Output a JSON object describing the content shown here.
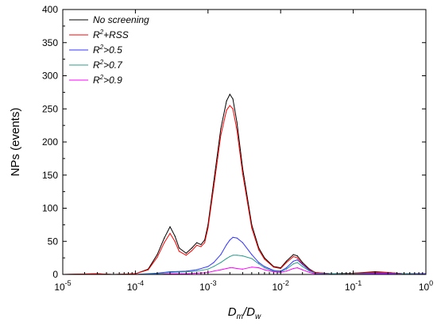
{
  "chart_data": {
    "type": "line",
    "xscale": "log",
    "xlim": [
      1e-05,
      1
    ],
    "ylim": [
      0,
      400
    ],
    "xticks": [
      {
        "value": 1e-05,
        "base": "10",
        "exp": "-5"
      },
      {
        "value": 0.0001,
        "base": "10",
        "exp": "-4"
      },
      {
        "value": 0.001,
        "base": "10",
        "exp": "-3"
      },
      {
        "value": 0.01,
        "base": "10",
        "exp": "-2"
      },
      {
        "value": 0.1,
        "base": "10",
        "exp": "-1"
      },
      {
        "value": 1,
        "base": "10",
        "exp": "0"
      }
    ],
    "yticks": [
      0,
      50,
      100,
      150,
      200,
      250,
      300,
      350,
      400
    ],
    "ylabel": "NPs (events)",
    "xlabel": {
      "num": "D",
      "num_sub": "m",
      "sep": "/",
      "den": "D",
      "den_sub": "w"
    },
    "legend_position": "top-left",
    "grid": false,
    "series": [
      {
        "name": "No screening",
        "color": "#000000",
        "x": [
          1e-05,
          3e-05,
          5e-05,
          0.0001,
          0.00015,
          0.0002,
          0.00025,
          0.0003,
          0.00035,
          0.0004,
          0.0005,
          0.0006,
          0.0007,
          0.0008,
          0.0009,
          0.001,
          0.0012,
          0.0015,
          0.0018,
          0.002,
          0.0022,
          0.0025,
          0.003,
          0.004,
          0.005,
          0.006,
          0.008,
          0.01,
          0.012,
          0.015,
          0.017,
          0.02,
          0.025,
          0.03,
          0.05,
          0.1,
          0.2,
          0.3,
          0.5,
          1
        ],
        "y": [
          0,
          1,
          0,
          1,
          8,
          30,
          55,
          72,
          58,
          40,
          32,
          40,
          48,
          45,
          52,
          75,
          140,
          220,
          262,
          272,
          265,
          230,
          160,
          75,
          40,
          25,
          12,
          10,
          20,
          30,
          28,
          18,
          8,
          3,
          1,
          2,
          4,
          3,
          1,
          1
        ]
      },
      {
        "name": "R2+RSS",
        "color": "#ff0000",
        "x": [
          1e-05,
          3e-05,
          5e-05,
          0.0001,
          0.00015,
          0.0002,
          0.00025,
          0.0003,
          0.00035,
          0.0004,
          0.0005,
          0.0006,
          0.0007,
          0.0008,
          0.0009,
          0.001,
          0.0012,
          0.0015,
          0.0018,
          0.002,
          0.0022,
          0.0025,
          0.003,
          0.004,
          0.005,
          0.006,
          0.008,
          0.01,
          0.012,
          0.015,
          0.017,
          0.02,
          0.025,
          0.03,
          0.05,
          0.1,
          0.2,
          0.3,
          0.5,
          1
        ],
        "y": [
          0,
          1,
          0,
          1,
          7,
          26,
          48,
          62,
          50,
          35,
          29,
          36,
          44,
          42,
          48,
          70,
          132,
          210,
          248,
          255,
          250,
          218,
          152,
          70,
          37,
          23,
          11,
          9,
          18,
          27,
          25,
          16,
          7,
          3,
          1,
          2,
          3,
          3,
          1,
          1
        ]
      },
      {
        "name": "R2>0.5",
        "color": "#3333ff",
        "x": [
          1e-05,
          0.0001,
          0.0002,
          0.0003,
          0.0005,
          0.0007,
          0.001,
          0.0012,
          0.0015,
          0.0018,
          0.002,
          0.0022,
          0.0025,
          0.003,
          0.004,
          0.005,
          0.006,
          0.008,
          0.01,
          0.012,
          0.015,
          0.017,
          0.02,
          0.025,
          0.03,
          0.05,
          0.1,
          0.2,
          0.3,
          0.5,
          1
        ],
        "y": [
          0,
          0,
          2,
          4,
          5,
          7,
          12,
          18,
          30,
          45,
          52,
          56,
          55,
          48,
          30,
          18,
          12,
          6,
          5,
          10,
          20,
          22,
          15,
          6,
          2,
          1,
          1,
          2,
          2,
          1,
          1
        ]
      },
      {
        "name": "R2>0.7",
        "color": "#2a9d8f",
        "x": [
          1e-05,
          0.0001,
          0.0002,
          0.0003,
          0.0005,
          0.0007,
          0.001,
          0.0012,
          0.0015,
          0.0018,
          0.002,
          0.0022,
          0.0025,
          0.003,
          0.004,
          0.005,
          0.006,
          0.008,
          0.01,
          0.012,
          0.015,
          0.017,
          0.02,
          0.025,
          0.03,
          0.05,
          0.1,
          0.2,
          0.3,
          0.5,
          1
        ],
        "y": [
          0,
          0,
          1,
          3,
          4,
          5,
          8,
          12,
          18,
          24,
          27,
          29,
          29,
          28,
          24,
          16,
          10,
          5,
          4,
          8,
          16,
          18,
          12,
          5,
          2,
          1,
          1,
          1,
          1,
          1,
          0
        ]
      },
      {
        "name": "R2>0.9",
        "color": "#ff00ff",
        "x": [
          1e-05,
          0.0001,
          0.0002,
          0.0003,
          0.0005,
          0.0007,
          0.001,
          0.0012,
          0.0015,
          0.0018,
          0.002,
          0.0022,
          0.0025,
          0.003,
          0.004,
          0.005,
          0.006,
          0.008,
          0.01,
          0.012,
          0.015,
          0.017,
          0.02,
          0.025,
          0.03,
          0.05,
          0.1,
          0.2,
          0.3,
          0.5,
          1
        ],
        "y": [
          0,
          0,
          0,
          1,
          1,
          2,
          3,
          5,
          7,
          9,
          10,
          10,
          9,
          8,
          11,
          10,
          7,
          4,
          3,
          5,
          9,
          10,
          7,
          3,
          1,
          0,
          0,
          1,
          1,
          0,
          0
        ]
      }
    ]
  },
  "legend": [
    {
      "color": "#000000",
      "label": "No screening"
    },
    {
      "color": "#ff0000",
      "r": "R",
      "sup": "2",
      "rest": "+RSS"
    },
    {
      "color": "#3333ff",
      "r": "R",
      "sup": "2",
      "rest": ">0.5"
    },
    {
      "color": "#2a9d8f",
      "r": "R",
      "sup": "2",
      "rest": ">0.7"
    },
    {
      "color": "#ff00ff",
      "r": "R",
      "sup": "2",
      "rest": ">0.9"
    }
  ]
}
